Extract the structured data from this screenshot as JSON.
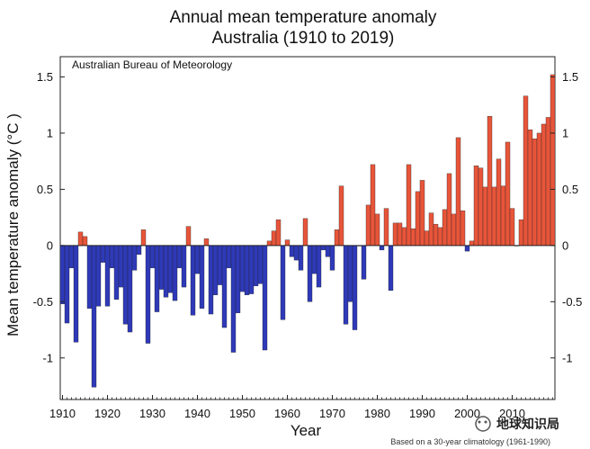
{
  "chart_data": {
    "type": "bar",
    "title": "Annual mean temperature anomaly",
    "subtitle": "Australia (1910 to 2019)",
    "xlabel": "Year",
    "ylabel": "Mean temperature anomaly (°C )",
    "source_label": "Australian Bureau of Meteorology",
    "footnote": "Based on a 30-year climatology (1961-1990)",
    "watermark": "地球知识局",
    "xlim": [
      1909.5,
      2019.5
    ],
    "ylim": [
      -1.37,
      1.68
    ],
    "x_ticks": [
      1910,
      1920,
      1930,
      1940,
      1950,
      1960,
      1970,
      1980,
      1990,
      2000,
      2010
    ],
    "x_tick_labels": [
      "1910",
      "1920",
      "1930",
      "1940",
      "1950",
      "1960",
      "1970",
      "1980",
      "1990",
      "2000",
      "2010"
    ],
    "y_ticks": [
      1.5,
      1,
      0.5,
      0,
      -0.5,
      -1
    ],
    "y_tick_labels": [
      "1.5",
      "1",
      "0.5",
      "0",
      "-0.5",
      "-1"
    ],
    "positive_color": "#e8553a",
    "negative_color": "#2e3ab8",
    "years": [
      1910,
      1911,
      1912,
      1913,
      1914,
      1915,
      1916,
      1917,
      1918,
      1919,
      1920,
      1921,
      1922,
      1923,
      1924,
      1925,
      1926,
      1927,
      1928,
      1929,
      1930,
      1931,
      1932,
      1933,
      1934,
      1935,
      1936,
      1937,
      1938,
      1939,
      1940,
      1941,
      1942,
      1943,
      1944,
      1945,
      1946,
      1947,
      1948,
      1949,
      1950,
      1951,
      1952,
      1953,
      1954,
      1955,
      1956,
      1957,
      1958,
      1959,
      1960,
      1961,
      1962,
      1963,
      1964,
      1965,
      1966,
      1967,
      1968,
      1969,
      1970,
      1971,
      1972,
      1973,
      1974,
      1975,
      1976,
      1977,
      1978,
      1979,
      1980,
      1981,
      1982,
      1983,
      1984,
      1985,
      1986,
      1987,
      1988,
      1989,
      1990,
      1991,
      1992,
      1993,
      1994,
      1995,
      1996,
      1997,
      1998,
      1999,
      2000,
      2001,
      2002,
      2003,
      2004,
      2005,
      2006,
      2007,
      2008,
      2009,
      2010,
      2011,
      2012,
      2013,
      2014,
      2015,
      2016,
      2017,
      2018,
      2019
    ],
    "values": [
      -0.52,
      -0.69,
      -0.2,
      -0.86,
      0.12,
      0.08,
      -0.56,
      -1.26,
      -0.54,
      -0.15,
      -0.54,
      -0.2,
      -0.48,
      -0.37,
      -0.7,
      -0.77,
      -0.22,
      -0.08,
      0.14,
      -0.87,
      -0.2,
      -0.59,
      -0.39,
      -0.46,
      -0.42,
      -0.49,
      -0.2,
      -0.37,
      0.17,
      -0.62,
      -0.25,
      -0.56,
      0.06,
      -0.61,
      -0.44,
      -0.35,
      -0.73,
      -0.2,
      -0.95,
      -0.6,
      -0.41,
      -0.44,
      -0.43,
      -0.36,
      -0.34,
      -0.93,
      0.04,
      0.13,
      0.23,
      -0.66,
      0.05,
      -0.1,
      -0.13,
      -0.22,
      0.24,
      -0.5,
      -0.25,
      -0.37,
      -0.04,
      -0.1,
      -0.22,
      0.14,
      0.53,
      -0.7,
      -0.5,
      -0.75,
      0.0,
      -0.3,
      0.36,
      0.72,
      0.28,
      -0.04,
      0.33,
      -0.4,
      0.2,
      0.2,
      0.16,
      0.72,
      0.15,
      0.48,
      0.58,
      0.13,
      0.29,
      0.19,
      0.16,
      0.32,
      0.64,
      0.28,
      0.96,
      0.31,
      -0.05,
      0.04,
      0.71,
      0.69,
      0.52,
      1.15,
      0.52,
      0.77,
      0.53,
      0.92,
      0.33,
      0.0,
      0.23,
      1.33,
      1.03,
      0.95,
      1.0,
      1.08,
      1.14,
      1.52
    ]
  }
}
